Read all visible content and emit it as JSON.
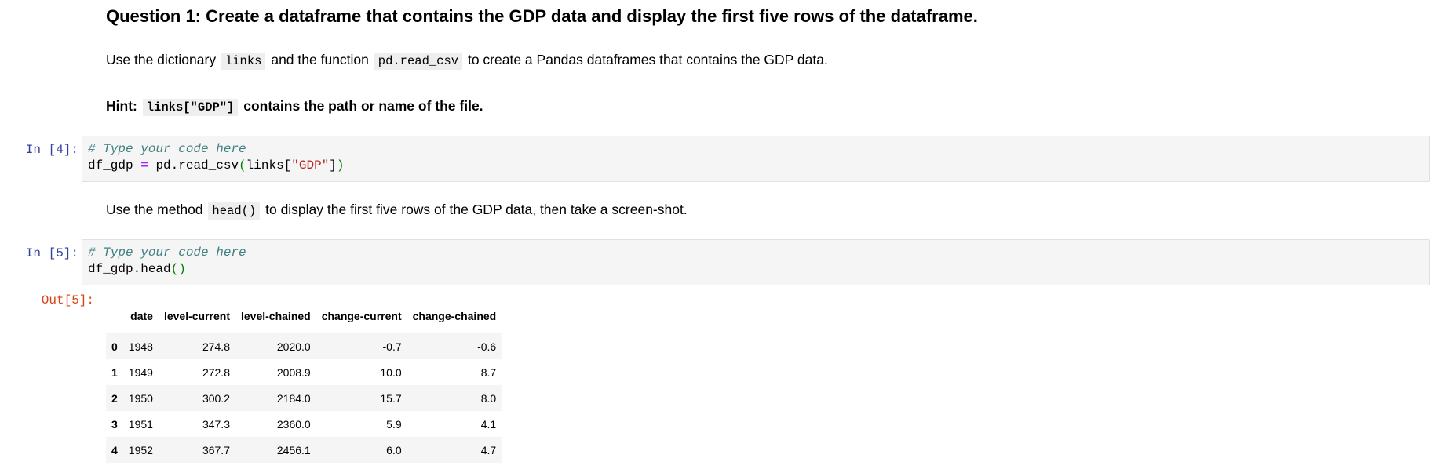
{
  "question": {
    "title": "Question 1: Create a dataframe that contains the GDP data and display the first five rows of the dataframe."
  },
  "instruction1": {
    "pre": "Use the dictionary",
    "code1": "links",
    "mid": "and the function",
    "code2": "pd.read_csv",
    "post": "to create a Pandas dataframes that contains the GDP data."
  },
  "hint": {
    "label": "Hint:",
    "code": "links[\"GDP\"]",
    "text": "contains the path or name of the file."
  },
  "cell4": {
    "prompt": "In [4]:",
    "comment": "# Type your code here",
    "var": "df_gdp",
    "op": "=",
    "call": "pd.read_csv",
    "open": "(",
    "arg_name": "links[",
    "arg_str": "\"GDP\"",
    "arg_close": "]",
    "close": ")"
  },
  "instruction2": {
    "pre": "Use the method",
    "code": "head()",
    "post": "to display the first five rows of the GDP data, then take a screen-shot."
  },
  "cell5": {
    "prompt": "In [5]:",
    "comment": "# Type your code here",
    "call": "df_gdp.head",
    "parens": "()",
    "out_prompt": "Out[5]:"
  },
  "dataframe": {
    "columns": [
      "",
      "date",
      "level-current",
      "level-chained",
      "change-current",
      "change-chained"
    ],
    "rows": [
      {
        "index": "0",
        "date": "1948",
        "level_current": "274.8",
        "level_chained": "2020.0",
        "change_current": "-0.7",
        "change_chained": "-0.6"
      },
      {
        "index": "1",
        "date": "1949",
        "level_current": "272.8",
        "level_chained": "2008.9",
        "change_current": "10.0",
        "change_chained": "8.7"
      },
      {
        "index": "2",
        "date": "1950",
        "level_current": "300.2",
        "level_chained": "2184.0",
        "change_current": "15.7",
        "change_chained": "8.0"
      },
      {
        "index": "3",
        "date": "1951",
        "level_current": "347.3",
        "level_chained": "2360.0",
        "change_current": "5.9",
        "change_chained": "4.1"
      },
      {
        "index": "4",
        "date": "1952",
        "level_current": "367.7",
        "level_chained": "2456.1",
        "change_current": "6.0",
        "change_chained": "4.7"
      }
    ]
  }
}
